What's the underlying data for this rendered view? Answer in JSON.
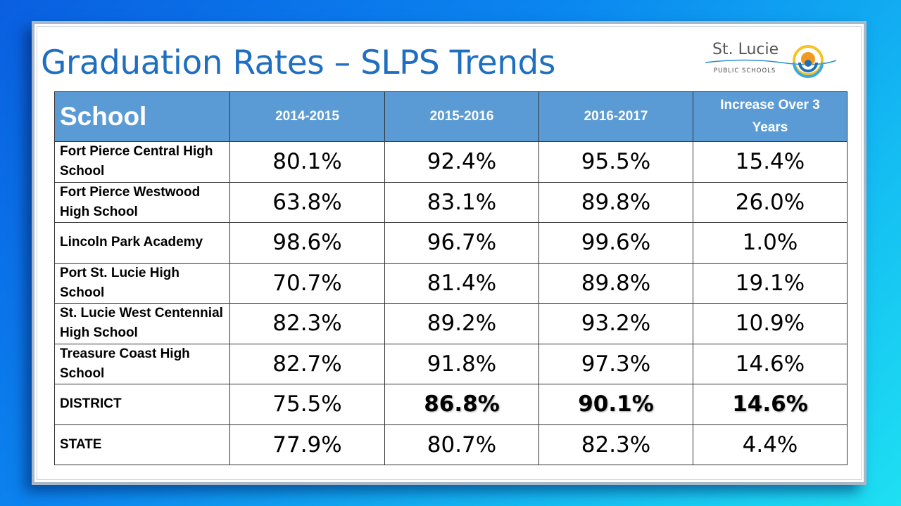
{
  "title": "Graduation Rates – SLPS Trends",
  "logo": {
    "name": "St. Lucie",
    "subtitle": "PUBLIC SCHOOLS"
  },
  "table": {
    "headers": [
      "School",
      "2014-2015",
      "2015-2016",
      "2016-2017",
      "Increase Over 3 Years"
    ],
    "rows": [
      {
        "school": "Fort Pierce Central High School",
        "values": [
          "80.1%",
          "92.4%",
          "95.5%",
          "15.4%"
        ]
      },
      {
        "school": "Fort Pierce Westwood High School",
        "values": [
          "63.8%",
          "83.1%",
          "89.8%",
          "26.0%"
        ]
      },
      {
        "school": "Lincoln Park Academy",
        "values": [
          "98.6%",
          "96.7%",
          "99.6%",
          "1.0%"
        ]
      },
      {
        "school": "Port St. Lucie High School",
        "values": [
          "70.7%",
          "81.4%",
          "89.8%",
          "19.1%"
        ]
      },
      {
        "school": "St. Lucie West Centennial High School",
        "values": [
          "82.3%",
          "89.2%",
          "93.2%",
          "10.9%"
        ]
      },
      {
        "school": "Treasure Coast High School",
        "values": [
          "82.7%",
          "91.8%",
          "97.3%",
          "14.6%"
        ]
      },
      {
        "school": "DISTRICT",
        "values": [
          "75.5%",
          "86.8%",
          "90.1%",
          "14.6%"
        ],
        "bold_values": [
          false,
          true,
          true,
          true
        ]
      },
      {
        "school": "STATE",
        "values": [
          "77.9%",
          "80.7%",
          "82.3%",
          "4.4%"
        ]
      }
    ]
  },
  "colors": {
    "header_bg": "#5b9bd5",
    "title": "#1f6fc1"
  }
}
